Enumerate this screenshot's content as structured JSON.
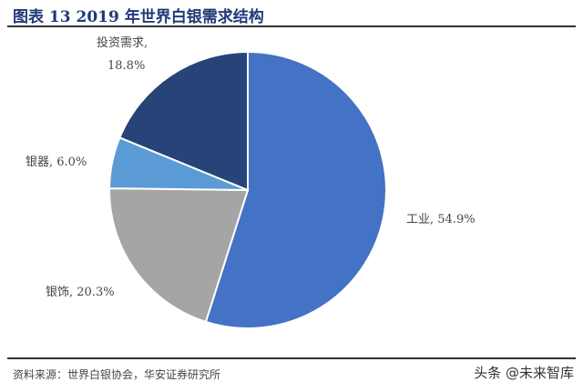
{
  "title": "图表 13 2019 年世界白银需求结构",
  "source": "资料来源：世界白银协会，华安证券研究所",
  "watermark": "头条 @未来智库",
  "chart_data": {
    "type": "pie",
    "start": "12 o'clock",
    "direction": "clockwise",
    "slices": [
      {
        "name": "工业",
        "value": 54.9,
        "label": "工业, 54.9%",
        "color": "#4472C4"
      },
      {
        "name": "银饰",
        "value": 20.3,
        "label": "银饰, 20.3%",
        "color": "#A5A5A5"
      },
      {
        "name": "银器",
        "value": 6.0,
        "label": "银器, 6.0%",
        "color": "#5B9BD5"
      },
      {
        "name": "投资需求",
        "value": 18.8,
        "label_line1": "投资需求,",
        "label_line2": "18.8%",
        "color": "#264478"
      }
    ]
  }
}
